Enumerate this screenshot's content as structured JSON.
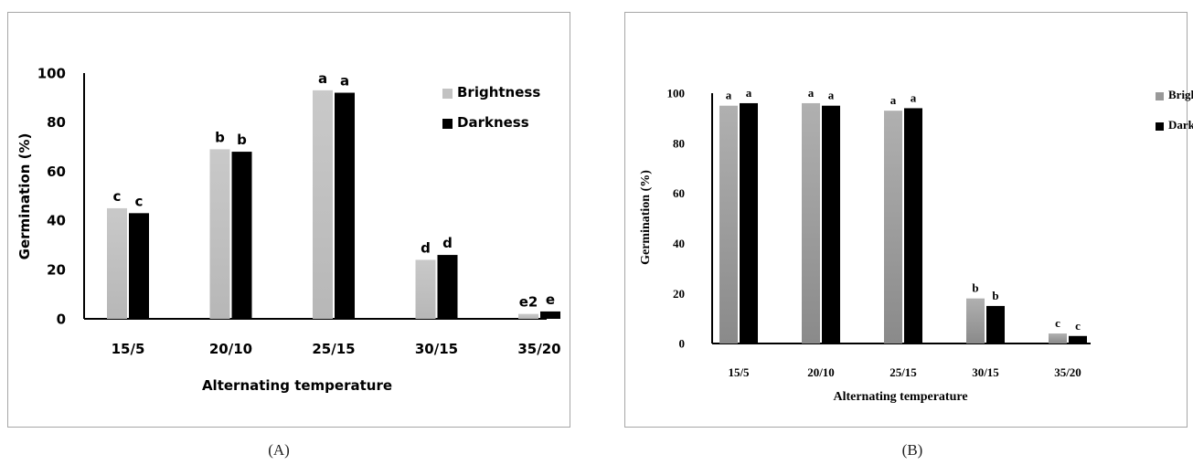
{
  "colors": {
    "brightness": "#c2c2c2",
    "brightness_b": "#9f9f9f",
    "darkness": "#000000",
    "axis": "#000000",
    "frame": "#a6a6a6"
  },
  "panels": [
    {
      "caption": "(A)",
      "chart_data": {
        "type": "bar",
        "categories": [
          "15/5",
          "20/10",
          "25/15",
          "30/15",
          "35/20"
        ],
        "xlabel": "Alternating temperature",
        "ylabel": "Germination (%)",
        "ylim": [
          0,
          100
        ],
        "yticks": [
          "0",
          "20",
          "40",
          "60",
          "80",
          "100"
        ],
        "legend_position": "right",
        "grid": false,
        "series": [
          {
            "name": "Brightness",
            "values": [
              45,
              69,
              93,
              24,
              2
            ],
            "letters": [
              "c",
              "b",
              "a",
              "d",
              "e2"
            ]
          },
          {
            "name": "Darkness",
            "values": [
              43,
              68,
              92,
              26,
              3
            ],
            "letters": [
              "c",
              "b",
              "a",
              "d",
              "e"
            ]
          }
        ]
      }
    },
    {
      "caption": "(B)",
      "chart_data": {
        "type": "bar",
        "categories": [
          "15/5",
          "20/10",
          "25/15",
          "30/15",
          "35/20"
        ],
        "xlabel": "Alternating temperature",
        "ylabel": "Germination (%)",
        "ylim": [
          0,
          100
        ],
        "yticks": [
          "0",
          "20",
          "40",
          "60",
          "80",
          "100"
        ],
        "legend_position": "right",
        "grid": false,
        "series": [
          {
            "name": "Brightness",
            "values": [
              95,
              96,
              93,
              18,
              4
            ],
            "letters": [
              "a",
              "a",
              "a",
              "b",
              "c"
            ]
          },
          {
            "name": "Darkness",
            "values": [
              96,
              95,
              94,
              15,
              3
            ],
            "letters": [
              "a",
              "a",
              "a",
              "b",
              "c"
            ]
          }
        ]
      }
    }
  ]
}
